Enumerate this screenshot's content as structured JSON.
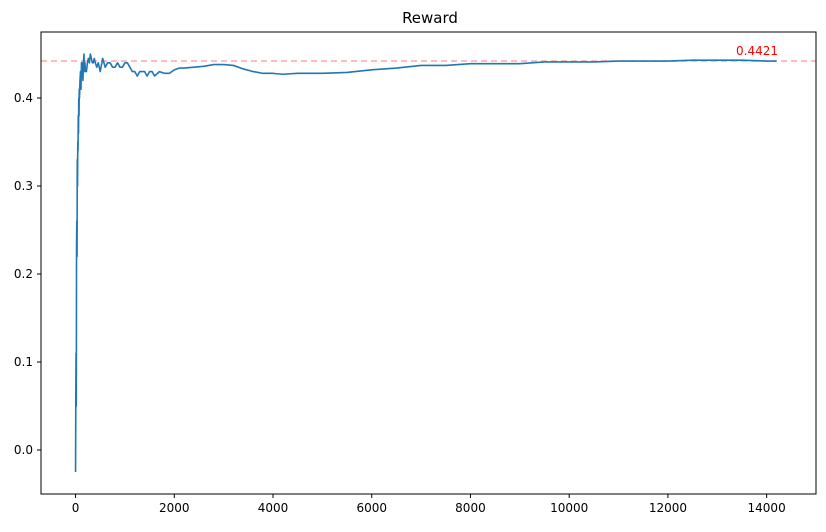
{
  "chart_data": {
    "type": "line",
    "title": "Reward",
    "xlabel": "",
    "ylabel": "",
    "xlim": [
      -700,
      15000
    ],
    "ylim": [
      -0.05,
      0.475
    ],
    "xticks": [
      0,
      2000,
      4000,
      6000,
      8000,
      10000,
      12000,
      14000
    ],
    "yticks": [
      0.0,
      0.1,
      0.2,
      0.3,
      0.4
    ],
    "xtick_labels": [
      "0",
      "2000",
      "4000",
      "6000",
      "8000",
      "10000",
      "12000",
      "14000"
    ],
    "ytick_labels": [
      "0.0",
      "0.1",
      "0.2",
      "0.3",
      "0.4"
    ],
    "grid": false,
    "line_color": "#1f77b4",
    "reference_line": {
      "y": 0.4421,
      "label": "0.4421",
      "color": "#ff0000"
    },
    "series": [
      {
        "x": [
          0,
          5,
          10,
          15,
          20,
          25,
          30,
          35,
          40,
          45,
          50,
          55,
          60,
          65,
          70,
          75,
          80,
          90,
          100,
          110,
          120,
          130,
          140,
          150,
          160,
          170,
          180,
          190,
          200,
          220,
          240,
          260,
          280,
          300,
          320,
          340,
          360,
          380,
          400,
          430,
          460,
          500,
          550,
          600,
          650,
          700,
          750,
          800,
          850,
          900,
          950,
          1000,
          1050,
          1100,
          1150,
          1200,
          1250,
          1300,
          1350,
          1400,
          1450,
          1500,
          1550,
          1600,
          1700,
          1800,
          1900,
          2000,
          2100,
          2200,
          2400,
          2600,
          2800,
          3000,
          3200,
          3400,
          3600,
          3800,
          4000,
          4200,
          4500,
          5000,
          5500,
          6000,
          6500,
          7000,
          7500,
          8000,
          8500,
          9000,
          9500,
          10000,
          10500,
          11000,
          11500,
          12000,
          12500,
          13000,
          13500,
          14000,
          14200
        ],
        "y": [
          -0.025,
          0.06,
          0.11,
          0.05,
          0.23,
          0.26,
          0.22,
          0.33,
          0.3,
          0.35,
          0.34,
          0.38,
          0.36,
          0.4,
          0.38,
          0.41,
          0.4,
          0.42,
          0.43,
          0.41,
          0.44,
          0.44,
          0.43,
          0.42,
          0.44,
          0.45,
          0.43,
          0.44,
          0.43,
          0.43,
          0.44,
          0.445,
          0.44,
          0.45,
          0.445,
          0.44,
          0.44,
          0.445,
          0.44,
          0.435,
          0.44,
          0.43,
          0.445,
          0.435,
          0.44,
          0.44,
          0.435,
          0.435,
          0.44,
          0.435,
          0.435,
          0.44,
          0.44,
          0.435,
          0.43,
          0.43,
          0.425,
          0.43,
          0.43,
          0.43,
          0.425,
          0.43,
          0.43,
          0.425,
          0.43,
          0.428,
          0.428,
          0.432,
          0.434,
          0.434,
          0.435,
          0.436,
          0.438,
          0.438,
          0.437,
          0.433,
          0.43,
          0.428,
          0.428,
          0.427,
          0.428,
          0.428,
          0.429,
          0.432,
          0.434,
          0.437,
          0.437,
          0.439,
          0.439,
          0.439,
          0.441,
          0.441,
          0.441,
          0.442,
          0.442,
          0.442,
          0.443,
          0.443,
          0.443,
          0.442,
          0.442
        ]
      }
    ]
  }
}
